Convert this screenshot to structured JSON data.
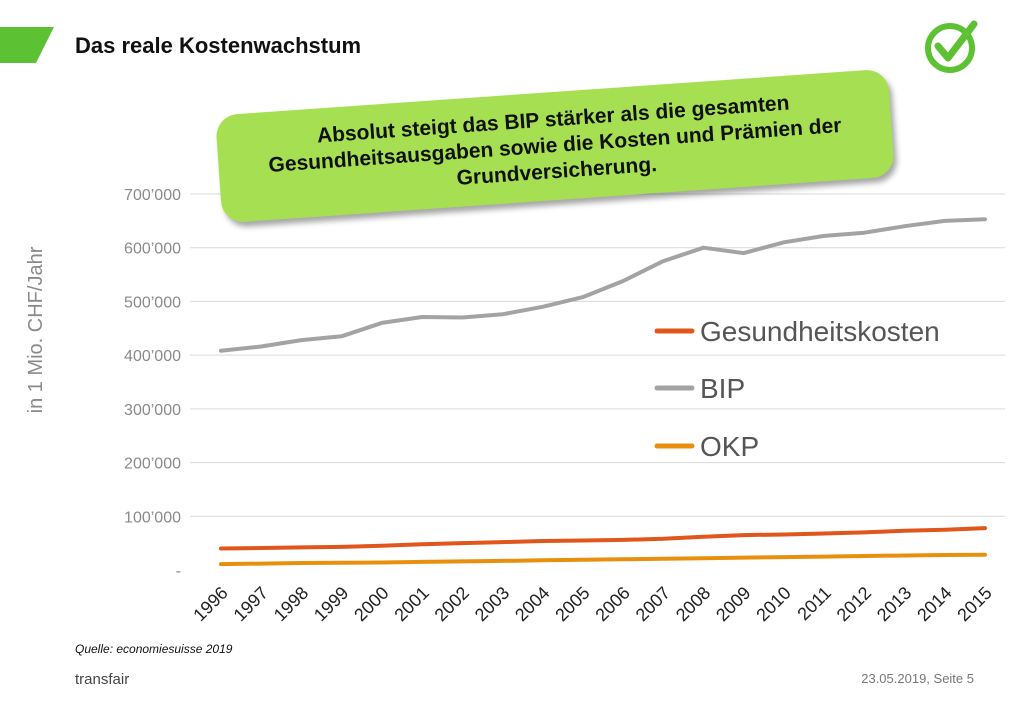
{
  "slide": {
    "title": "Das reale Kostenwachstum",
    "callout": "Absolut steigt das BIP stärker als die gesamten Gesundheitsausgaben sowie die Kosten und Prämien der Grundversicherung.",
    "source": "Quelle: economiesuisse 2019",
    "footer_brand": "transfair",
    "footer_date": "23.05.2019, Seite 5",
    "accent_color": "#5cc234",
    "logo_icon": "checkmark-circle-icon"
  },
  "chart_data": {
    "type": "line",
    "title": "",
    "xlabel": "",
    "ylabel": "in 1 Mio. CHF/Jahr",
    "x": [
      "1996",
      "1997",
      "1998",
      "1999",
      "2000",
      "2001",
      "2002",
      "2003",
      "2004",
      "2005",
      "2006",
      "2007",
      "2008",
      "2009",
      "2010",
      "2011",
      "2012",
      "2013",
      "2014",
      "2015"
    ],
    "ylim": [
      0,
      700000
    ],
    "yticks": [
      0,
      100000,
      200000,
      300000,
      400000,
      500000,
      600000,
      700000
    ],
    "ytick_labels": [
      "-",
      "100’000",
      "200’000",
      "300’000",
      "400’000",
      "500’000",
      "600’000",
      "700’000"
    ],
    "grid": true,
    "legend_position": "right",
    "series": [
      {
        "name": "Gesundheitskosten",
        "color": "#e0561c",
        "values": [
          40000,
          41000,
          42000,
          43000,
          45000,
          48000,
          50000,
          52000,
          54000,
          55000,
          56000,
          58000,
          62000,
          65000,
          66000,
          68000,
          70000,
          73000,
          75000,
          78000
        ]
      },
      {
        "name": "BIP",
        "color": "#a3a3a3",
        "values": [
          408000,
          416000,
          428000,
          435000,
          460000,
          471000,
          470000,
          476000,
          490000,
          508000,
          538000,
          575000,
          600000,
          590000,
          610000,
          622000,
          628000,
          640000,
          650000,
          653000
        ]
      },
      {
        "name": "OKP",
        "color": "#e8900e",
        "values": [
          11000,
          12000,
          13000,
          13500,
          14000,
          15000,
          16000,
          17000,
          18000,
          19000,
          20000,
          21000,
          22000,
          23000,
          24000,
          25000,
          26000,
          27000,
          28000,
          28500
        ]
      }
    ]
  }
}
